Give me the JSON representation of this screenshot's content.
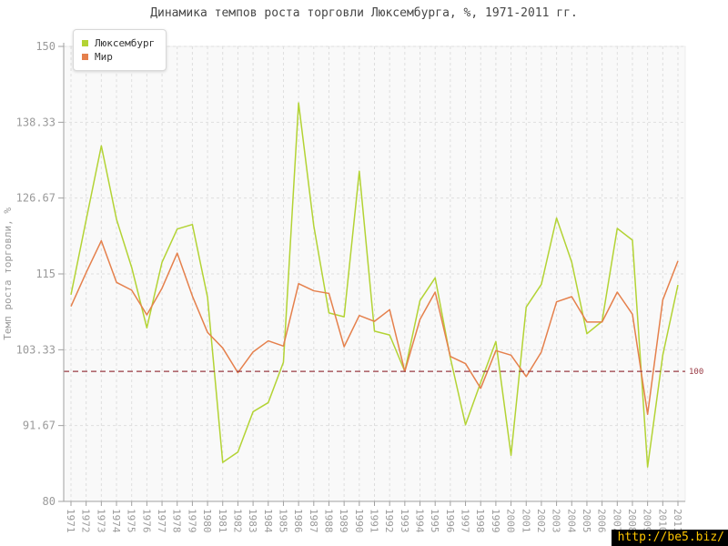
{
  "title": "Динамика темпов роста торговли Люксембурга, %, 1971-2011 гг.",
  "y_axis_title": "Темп роста торговли, %",
  "watermark": "http://be5.biz/",
  "colors": {
    "luxembourg": "#b3d334",
    "world": "#e5804c",
    "reference": "#993a44",
    "grid": "#dedede",
    "axis": "#a0a0a0",
    "tick_label": "#9a9a9a",
    "plot_bg": "#f9f9f9",
    "plot_border": "#ececec"
  },
  "chart_data": {
    "type": "line",
    "title": "Динамика темпов роста торговли Люксембурга, %, 1971-2011 гг.",
    "xlabel": "",
    "ylabel": "Темп роста торговли, %",
    "x": [
      1971,
      1972,
      1973,
      1974,
      1975,
      1976,
      1977,
      1978,
      1979,
      1980,
      1981,
      1982,
      1983,
      1984,
      1985,
      1986,
      1987,
      1988,
      1989,
      1990,
      1991,
      1992,
      1993,
      1994,
      1995,
      1996,
      1997,
      1998,
      1999,
      2000,
      2001,
      2002,
      2003,
      2004,
      2005,
      2006,
      2007,
      2008,
      2009,
      2010,
      2011
    ],
    "series": [
      {
        "name": "Люксембург",
        "color": "#b3d334",
        "values": [
          111.8,
          123.3,
          134.7,
          123.4,
          116.0,
          106.7,
          116.8,
          121.9,
          122.6,
          111.4,
          86.0,
          87.6,
          93.8,
          95.2,
          101.4,
          141.3,
          122.4,
          109.0,
          108.4,
          130.8,
          106.2,
          105.6,
          100.0,
          110.9,
          114.4,
          102.1,
          91.8,
          98.3,
          104.6,
          87.1,
          109.9,
          113.4,
          123.6,
          116.8,
          105.8,
          107.7,
          122.0,
          120.2,
          85.3,
          102.5,
          113.3
        ]
      },
      {
        "name": "Мир",
        "color": "#e5804c",
        "values": [
          110.0,
          115.2,
          120.1,
          113.7,
          112.5,
          108.7,
          112.8,
          118.2,
          111.6,
          106.0,
          103.6,
          99.8,
          103.0,
          104.7,
          103.9,
          113.5,
          112.4,
          112.0,
          103.8,
          108.6,
          107.7,
          109.5,
          100.0,
          108.0,
          112.2,
          102.3,
          101.2,
          97.4,
          103.2,
          102.5,
          99.2,
          103.0,
          110.7,
          111.5,
          107.6,
          107.6,
          112.2,
          108.8,
          93.4,
          111.0,
          117.0
        ]
      }
    ],
    "ylim": [
      80,
      150
    ],
    "yticks": [
      {
        "value": 150,
        "label": "150"
      },
      {
        "value": 138.33,
        "label": "138.33"
      },
      {
        "value": 126.67,
        "label": "126.67"
      },
      {
        "value": 115,
        "label": "115"
      },
      {
        "value": 103.33,
        "label": "103.33"
      },
      {
        "value": 91.67,
        "label": "91.67"
      },
      {
        "value": 80,
        "label": "80"
      }
    ],
    "reference_line": {
      "value": 100,
      "label": "100"
    },
    "grid": true,
    "legend_position": "top-left"
  }
}
